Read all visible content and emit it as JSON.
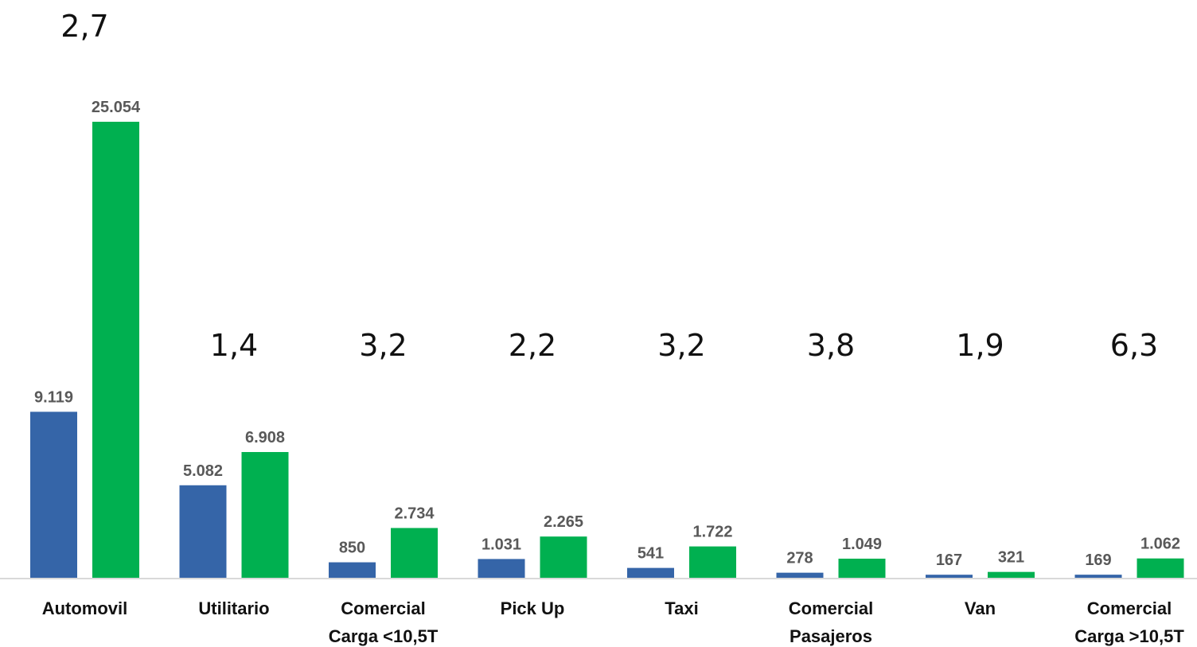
{
  "chart_data": {
    "type": "bar",
    "title": "",
    "xlabel": "",
    "ylabel": "",
    "categories": [
      [
        "Automovil"
      ],
      [
        "Utilitario"
      ],
      [
        "Comercial",
        "Carga <10,5T"
      ],
      [
        "Pick Up"
      ],
      [
        "Taxi"
      ],
      [
        "Comercial",
        "Pasajeros"
      ],
      [
        "Van"
      ],
      [
        "Comercial",
        "Carga >10,5T"
      ]
    ],
    "series": [
      {
        "color": "#3565A8",
        "values": [
          9119,
          5082,
          850,
          1031,
          541,
          278,
          167,
          169
        ],
        "labels": [
          "9.119",
          "5.082",
          "850",
          "1.031",
          "541",
          "278",
          "167",
          "169"
        ]
      },
      {
        "color": "#00B050",
        "values": [
          25054,
          6908,
          2734,
          2265,
          1722,
          1049,
          321,
          1062
        ],
        "labels": [
          "25.054",
          "6.908",
          "2.734",
          "2.265",
          "1.722",
          "1.049",
          "321",
          "1.062"
        ]
      }
    ],
    "ratios": [
      "2,7",
      "1,4",
      "3,2",
      "2,2",
      "3,2",
      "3,8",
      "1,9",
      "6,3"
    ],
    "ylim": [
      0,
      25054
    ],
    "grid": false,
    "legend": "none"
  }
}
